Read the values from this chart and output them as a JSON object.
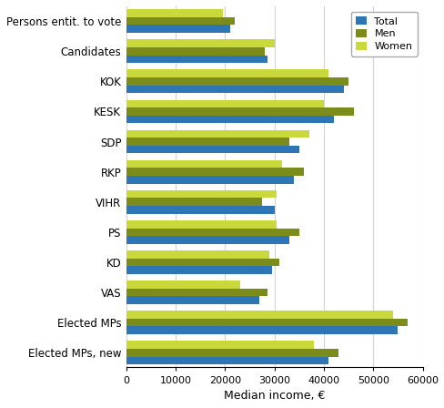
{
  "categories": [
    "Persons entit. to vote",
    "Candidates",
    "KOK",
    "KESK",
    "SDP",
    "RKP",
    "VIHR",
    "PS",
    "KD",
    "VAS",
    "Elected MPs",
    "Elected MPs, new"
  ],
  "total": [
    21000,
    28500,
    44000,
    42000,
    35000,
    34000,
    30000,
    33000,
    29500,
    27000,
    55000,
    41000
  ],
  "men": [
    22000,
    28000,
    45000,
    46000,
    33000,
    36000,
    27500,
    35000,
    31000,
    28500,
    57000,
    43000
  ],
  "women": [
    19500,
    30000,
    41000,
    40000,
    37000,
    31500,
    30500,
    30500,
    29000,
    23000,
    54000,
    38000
  ],
  "color_total": "#2E75B6",
  "color_men": "#7B8C1A",
  "color_women": "#C9D93C",
  "xlabel": "Median income, €",
  "xlim": [
    0,
    60000
  ],
  "xticks": [
    0,
    10000,
    20000,
    30000,
    40000,
    50000,
    60000
  ],
  "xtick_labels": [
    "0",
    "10000",
    "20000",
    "30000",
    "40000",
    "50000",
    "60000"
  ],
  "legend_labels": [
    "Total",
    "Men",
    "Women"
  ],
  "bar_height": 0.26,
  "figsize": [
    4.89,
    4.48
  ],
  "dpi": 100
}
